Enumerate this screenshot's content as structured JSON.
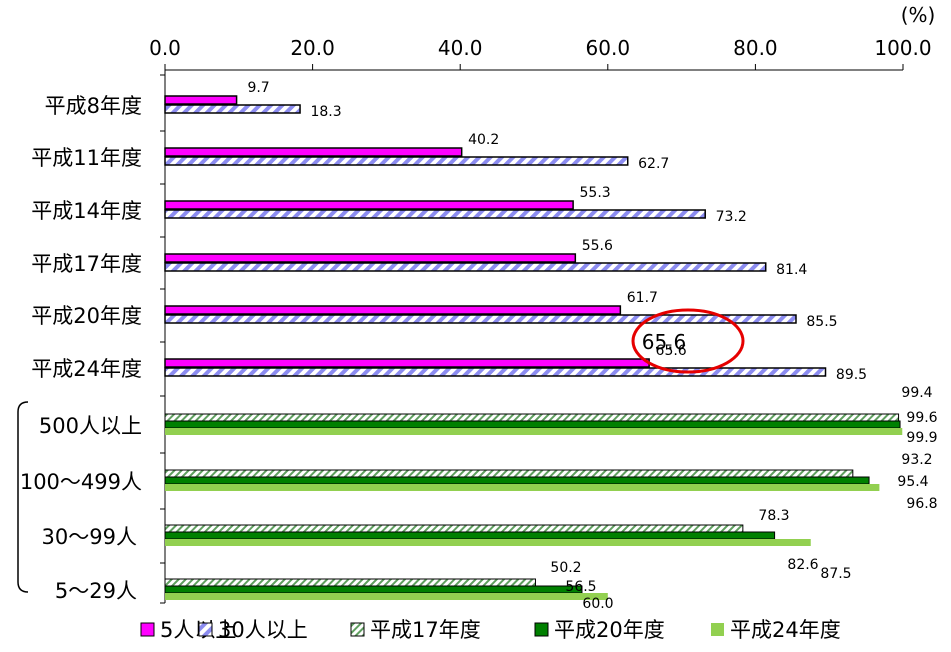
{
  "chart_data": {
    "type": "bar",
    "orientation": "horizontal",
    "unit_label": "(%)",
    "xlim": [
      0,
      100
    ],
    "ticks": [
      "0.0",
      "20.0",
      "40.0",
      "60.0",
      "80.0",
      "100.0"
    ],
    "groups_by_year": [
      {
        "label": "平成8年度",
        "values": {
          "5人以上": 9.7,
          "30人以上": 18.3
        }
      },
      {
        "label": "平成11年度",
        "values": {
          "5人以上": 40.2,
          "30人以上": 62.7
        }
      },
      {
        "label": "平成14年度",
        "values": {
          "5人以上": 55.3,
          "30人以上": 73.2
        }
      },
      {
        "label": "平成17年度",
        "values": {
          "5人以上": 55.6,
          "30人以上": 81.4
        }
      },
      {
        "label": "平成20年度",
        "values": {
          "5人以上": 61.7,
          "30人以上": 85.5
        }
      },
      {
        "label": "平成24年度",
        "values": {
          "5人以上": 65.6,
          "30人以上": 89.5
        }
      }
    ],
    "groups_by_size": [
      {
        "label": "500人以上",
        "values": {
          "平成17年度": 99.4,
          "平成20年度": 99.6,
          "平成24年度": 99.9
        }
      },
      {
        "label": "100〜499人",
        "values": {
          "平成17年度": 93.2,
          "平成20年度": 95.4,
          "平成24年度": 96.8
        }
      },
      {
        "label": "30〜99人",
        "values": {
          "平成17年度": 78.3,
          "平成20年度": 82.6,
          "平成24年度": 87.5
        }
      },
      {
        "label": "5〜29人",
        "values": {
          "平成17年度": 50.2,
          "平成20年度": 56.5,
          "平成24年度": 60.0
        }
      }
    ],
    "series": [
      {
        "name": "5人以上",
        "color": "#ff00ff",
        "pattern": "solid"
      },
      {
        "name": "30人以上",
        "color": "#9999ff",
        "pattern": "diagonal-stripes"
      },
      {
        "name": "平成17年度",
        "color": "#66aa66",
        "pattern": "hatched"
      },
      {
        "name": "平成20年度",
        "color": "#008000",
        "pattern": "solid"
      },
      {
        "name": "平成24年度",
        "color": "#92d050",
        "pattern": "solid"
      }
    ],
    "legend_position": "bottom",
    "grid": false,
    "highlight": {
      "group": "平成24年度",
      "series": "5人以上",
      "value": "65.6"
    }
  }
}
